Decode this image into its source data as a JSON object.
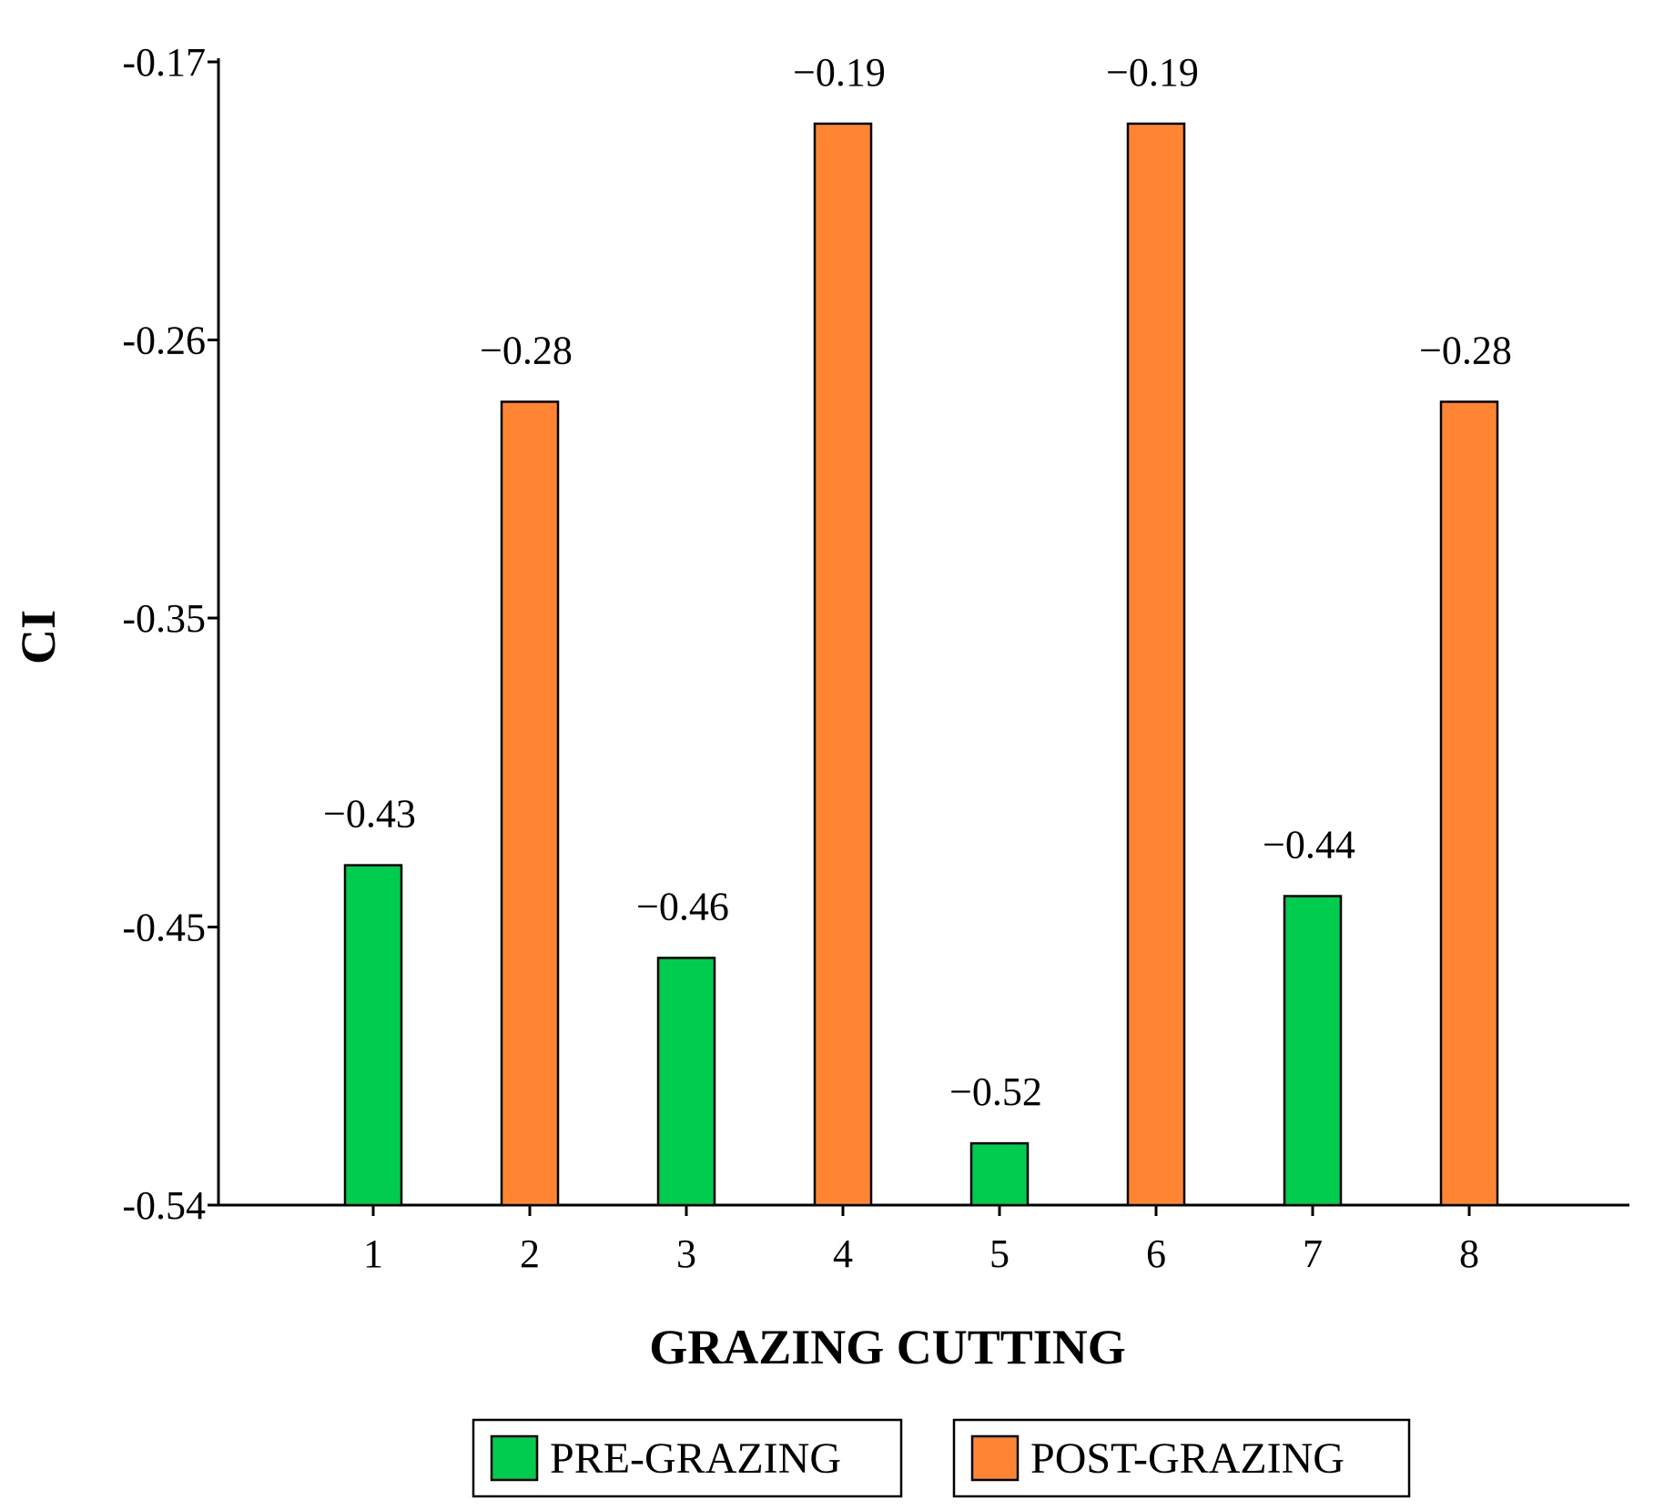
{
  "chart_data": {
    "type": "bar",
    "xlabel": "GRAZING CUTTING",
    "ylabel": "CI",
    "ylim": [
      -0.54,
      -0.17
    ],
    "y_ticks": [
      "-0.17",
      "-0.26",
      "-0.35",
      "-0.45",
      "-0.54"
    ],
    "y_tick_values": [
      -0.17,
      -0.26,
      -0.35,
      -0.45,
      -0.54
    ],
    "categories": [
      "1",
      "2",
      "3",
      "4",
      "5",
      "6",
      "7",
      "8"
    ],
    "bars": [
      {
        "category": "1",
        "series": "PRE-GRAZING",
        "value": -0.43,
        "label": "−0.43"
      },
      {
        "category": "2",
        "series": "POST-GRAZING",
        "value": -0.28,
        "label": "−0.28"
      },
      {
        "category": "3",
        "series": "PRE-GRAZING",
        "value": -0.46,
        "label": "−0.46"
      },
      {
        "category": "4",
        "series": "POST-GRAZING",
        "value": -0.19,
        "label": "−0.19"
      },
      {
        "category": "5",
        "series": "PRE-GRAZING",
        "value": -0.52,
        "label": "−0.52"
      },
      {
        "category": "6",
        "series": "POST-GRAZING",
        "value": -0.19,
        "label": "−0.19"
      },
      {
        "category": "7",
        "series": "PRE-GRAZING",
        "value": -0.44,
        "label": "−0.44"
      },
      {
        "category": "8",
        "series": "POST-GRAZING",
        "value": -0.28,
        "label": "−0.28"
      }
    ],
    "series": [
      {
        "name": "PRE-GRAZING",
        "color": "#00cc4e"
      },
      {
        "name": "POST-GRAZING",
        "color": "#ff8533"
      }
    ],
    "legend": "bottom",
    "grid": false
  }
}
